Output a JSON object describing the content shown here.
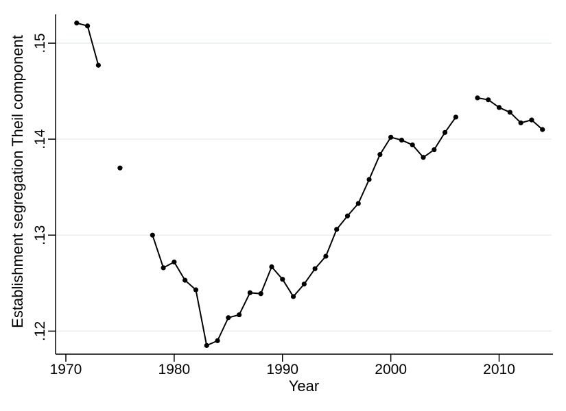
{
  "figure": {
    "background_color": "#ffffff",
    "text_color": "#000000"
  },
  "chart_data": {
    "type": "line",
    "title": "",
    "xlabel": "Year",
    "ylabel": "Establishment segregation Theil component",
    "series": [
      {
        "name": "Establishment segregation Theil component",
        "x": [
          1971,
          1972,
          1973,
          1975,
          1978,
          1979,
          1980,
          1981,
          1982,
          1983,
          1984,
          1985,
          1986,
          1987,
          1988,
          1989,
          1990,
          1991,
          1992,
          1993,
          1994,
          1995,
          1996,
          1997,
          1998,
          1999,
          2000,
          2001,
          2002,
          2003,
          2004,
          2005,
          2006,
          2008,
          2009,
          2010,
          2011,
          2012,
          2013,
          2014
        ],
        "y": [
          0.1521,
          0.1518,
          0.1477,
          0.137,
          0.13,
          0.1266,
          0.1272,
          0.1253,
          0.1243,
          0.1185,
          0.119,
          0.1214,
          0.1217,
          0.124,
          0.1239,
          0.1267,
          0.1254,
          0.1236,
          0.1249,
          0.1265,
          0.1278,
          0.1306,
          0.132,
          0.1333,
          0.1358,
          0.1384,
          0.1402,
          0.1399,
          0.1394,
          0.1381,
          0.1389,
          0.1407,
          0.1423,
          0.1443,
          0.1441,
          0.1433,
          0.1428,
          0.1417,
          0.142,
          0.141
        ],
        "line_color": "#000000",
        "marker": "filled-circle",
        "gap_rule_note": "line breaks where consecutive years differ by more than 1 (missing 1970, 1974, 1976-77, 2007)"
      }
    ],
    "xticks": {
      "values": [
        1970,
        1980,
        1990,
        2000,
        2010
      ],
      "labels": [
        "1970",
        "1980",
        "1990",
        "2000",
        "2010"
      ]
    },
    "yticks": {
      "values": [
        0.12,
        0.13,
        0.14,
        0.15
      ],
      "labels": [
        ".12",
        ".13",
        ".14",
        ".15"
      ]
    },
    "xlim": [
      1969.05,
      2014.97
    ],
    "ylim": [
      0.1176,
      0.153
    ],
    "grid": "horizontal-only",
    "gridline_color": "#e7eff1",
    "legend": "none",
    "ytick_label_rotation_deg": -90
  }
}
